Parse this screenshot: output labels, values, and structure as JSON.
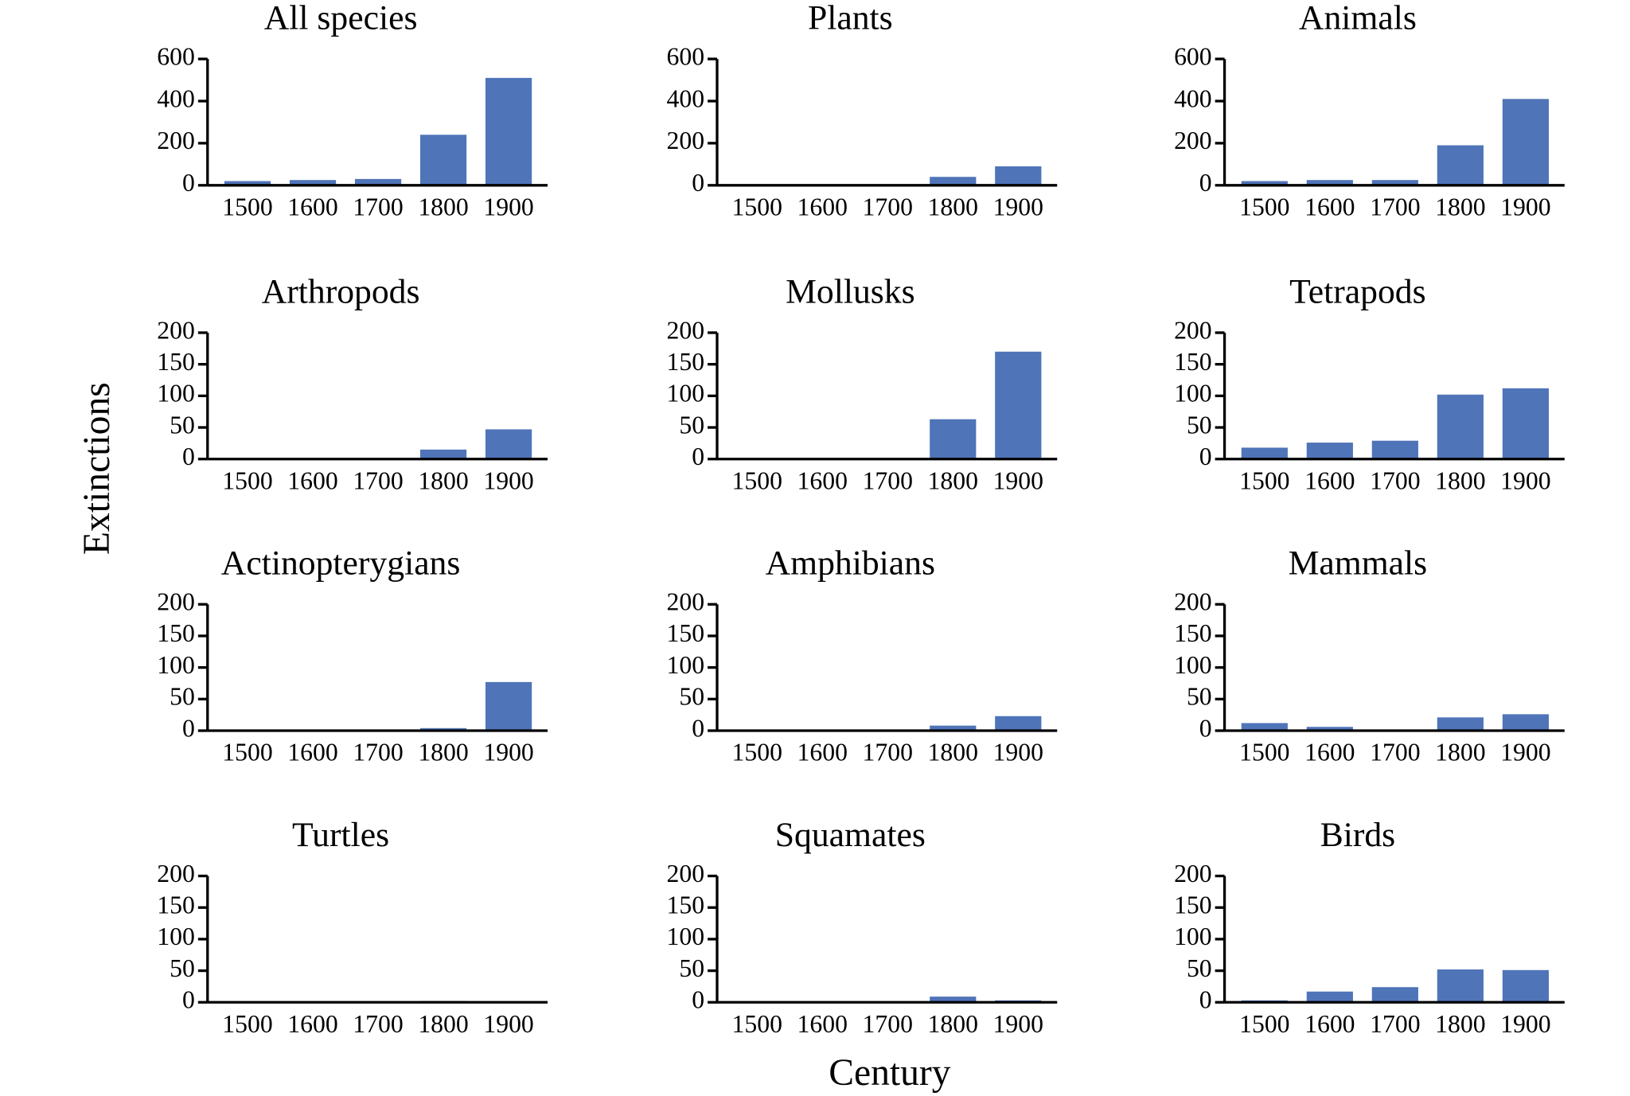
{
  "ylabel": "Extinctions",
  "xlabel": "Century",
  "chart_data": [
    {
      "type": "bar",
      "title": "All species",
      "categories": [
        "1500",
        "1600",
        "1700",
        "1800",
        "1900"
      ],
      "values": [
        20,
        25,
        30,
        240,
        510
      ],
      "color": "#4f74b8",
      "ylim": [
        0,
        600
      ],
      "yticks": [
        0,
        200,
        400,
        600
      ]
    },
    {
      "type": "bar",
      "title": "Plants",
      "categories": [
        "1500",
        "1600",
        "1700",
        "1800",
        "1900"
      ],
      "values": [
        0,
        0,
        0,
        40,
        90
      ],
      "color": "#4f74b8",
      "ylim": [
        0,
        600
      ],
      "yticks": [
        0,
        200,
        400,
        600
      ]
    },
    {
      "type": "bar",
      "title": "Animals",
      "categories": [
        "1500",
        "1600",
        "1700",
        "1800",
        "1900"
      ],
      "values": [
        20,
        25,
        25,
        190,
        410
      ],
      "color": "#4f74b8",
      "ylim": [
        0,
        600
      ],
      "yticks": [
        0,
        200,
        400,
        600
      ]
    },
    {
      "type": "bar",
      "title": "Arthropods",
      "categories": [
        "1500",
        "1600",
        "1700",
        "1800",
        "1900"
      ],
      "values": [
        0,
        0,
        0,
        15,
        47
      ],
      "color": "#4f74b8",
      "ylim": [
        0,
        200
      ],
      "yticks": [
        0,
        50,
        100,
        150,
        200
      ]
    },
    {
      "type": "bar",
      "title": "Mollusks",
      "categories": [
        "1500",
        "1600",
        "1700",
        "1800",
        "1900"
      ],
      "values": [
        0,
        0,
        0,
        63,
        170
      ],
      "color": "#4f74b8",
      "ylim": [
        0,
        200
      ],
      "yticks": [
        0,
        50,
        100,
        150,
        200
      ]
    },
    {
      "type": "bar",
      "title": "Tetrapods",
      "categories": [
        "1500",
        "1600",
        "1700",
        "1800",
        "1900"
      ],
      "values": [
        18,
        26,
        29,
        102,
        112
      ],
      "color": "#4f74b8",
      "ylim": [
        0,
        200
      ],
      "yticks": [
        0,
        50,
        100,
        150,
        200
      ]
    },
    {
      "type": "bar",
      "title": "Actinopterygians",
      "categories": [
        "1500",
        "1600",
        "1700",
        "1800",
        "1900"
      ],
      "values": [
        0,
        0,
        0,
        4,
        77
      ],
      "color": "#4f74b8",
      "ylim": [
        0,
        200
      ],
      "yticks": [
        0,
        50,
        100,
        150,
        200
      ]
    },
    {
      "type": "bar",
      "title": "Amphibians",
      "categories": [
        "1500",
        "1600",
        "1700",
        "1800",
        "1900"
      ],
      "values": [
        0,
        0,
        0,
        8,
        23
      ],
      "color": "#4f74b8",
      "ylim": [
        0,
        200
      ],
      "yticks": [
        0,
        50,
        100,
        150,
        200
      ]
    },
    {
      "type": "bar",
      "title": "Mammals",
      "categories": [
        "1500",
        "1600",
        "1700",
        "1800",
        "1900"
      ],
      "values": [
        12,
        6,
        1,
        21,
        26
      ],
      "color": "#4f74b8",
      "ylim": [
        0,
        200
      ],
      "yticks": [
        0,
        50,
        100,
        150,
        200
      ]
    },
    {
      "type": "bar",
      "title": "Turtles",
      "categories": [
        "1500",
        "1600",
        "1700",
        "1800",
        "1900"
      ],
      "values": [
        0,
        0,
        0,
        2,
        0
      ],
      "color": "#4f74b8",
      "ylim": [
        0,
        200
      ],
      "yticks": [
        0,
        50,
        100,
        150,
        200
      ]
    },
    {
      "type": "bar",
      "title": "Squamates",
      "categories": [
        "1500",
        "1600",
        "1700",
        "1800",
        "1900"
      ],
      "values": [
        0,
        0,
        0,
        9,
        3
      ],
      "color": "#4f74b8",
      "ylim": [
        0,
        200
      ],
      "yticks": [
        0,
        50,
        100,
        150,
        200
      ]
    },
    {
      "type": "bar",
      "title": "Birds",
      "categories": [
        "1500",
        "1600",
        "1700",
        "1800",
        "1900"
      ],
      "values": [
        3,
        17,
        24,
        52,
        51
      ],
      "color": "#4f74b8",
      "ylim": [
        0,
        200
      ],
      "yticks": [
        0,
        50,
        100,
        150,
        200
      ]
    }
  ]
}
